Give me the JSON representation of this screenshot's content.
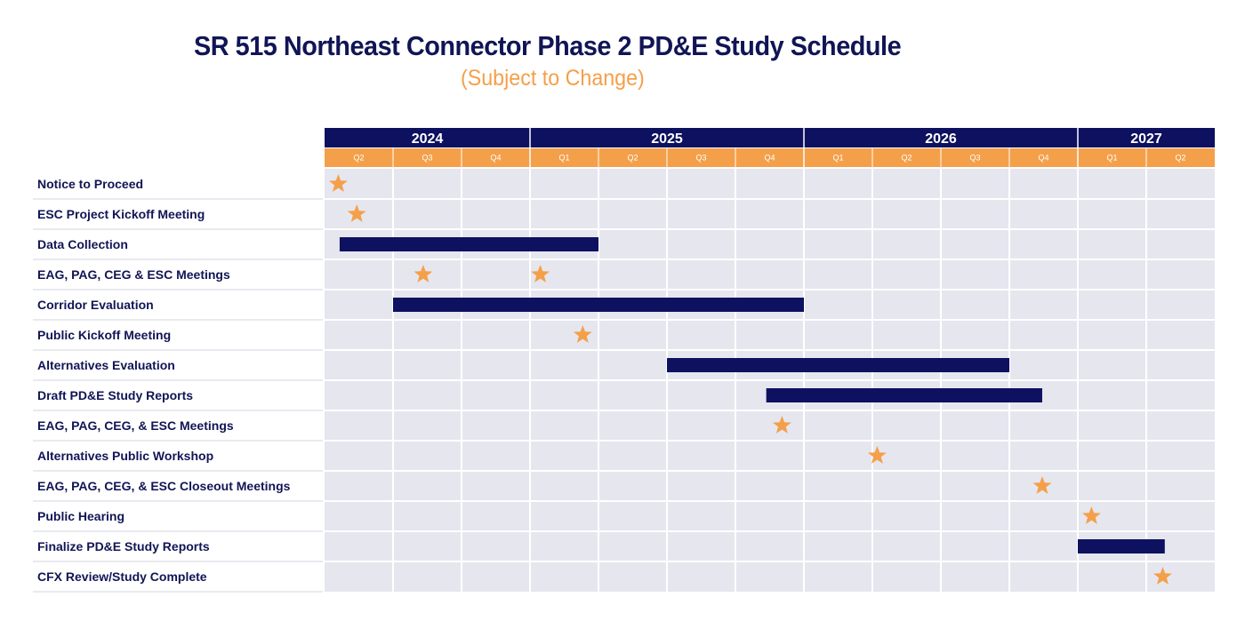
{
  "chart_data": {
    "type": "gantt",
    "title": "SR 515 Northeast Connector Phase 2 PD&E Study Schedule",
    "subtitle": "(Subject to Change)",
    "years": [
      {
        "label": "2024",
        "quarters": 3
      },
      {
        "label": "2025",
        "quarters": 4
      },
      {
        "label": "2026",
        "quarters": 4
      },
      {
        "label": "2027",
        "quarters": 2
      }
    ],
    "quarters": [
      "Q2",
      "Q3",
      "Q4",
      "Q1",
      "Q2",
      "Q3",
      "Q4",
      "Q1",
      "Q2",
      "Q3",
      "Q4",
      "Q1",
      "Q2"
    ],
    "time_unit": "quarters elapsed since start of 2024 Q2",
    "tasks": [
      {
        "label": "Notice to Proceed",
        "milestones": [
          0.2
        ]
      },
      {
        "label": "ESC Project Kickoff Meeting",
        "milestones": [
          0.47
        ]
      },
      {
        "label": "Data Collection",
        "bar": [
          0.22,
          4.0
        ]
      },
      {
        "label": "EAG, PAG, CEG & ESC  Meetings",
        "milestones": [
          1.44,
          3.15
        ]
      },
      {
        "label": "Corridor Evaluation",
        "bar": [
          1.0,
          7.0
        ]
      },
      {
        "label": "Public Kickoff Meeting",
        "milestones": [
          3.77
        ]
      },
      {
        "label": "Alternatives Evaluation",
        "bar": [
          5.0,
          10.0
        ]
      },
      {
        "label": "Draft PD&E Study Reports",
        "bar": [
          6.45,
          10.48
        ]
      },
      {
        "label": "EAG, PAG, CEG, & ESC Meetings",
        "milestones": [
          6.68
        ]
      },
      {
        "label": "Alternatives Public Workshop",
        "milestones": [
          8.07
        ]
      },
      {
        "label": "EAG, PAG, CEG, & ESC Closeout Meetings",
        "milestones": [
          10.48
        ]
      },
      {
        "label": "Public Hearing",
        "milestones": [
          11.2
        ]
      },
      {
        "label": "Finalize PD&E Study Reports",
        "bar": [
          11.0,
          12.27
        ]
      },
      {
        "label": "CFX Review/Study Complete",
        "milestones": [
          12.24
        ]
      }
    ]
  },
  "colors": {
    "navy": "#0d1160",
    "orange": "#f4a04a",
    "row_background": "#e6e6ef",
    "row_separator": "#ffffff",
    "label_separator": "#d3d3e0"
  }
}
